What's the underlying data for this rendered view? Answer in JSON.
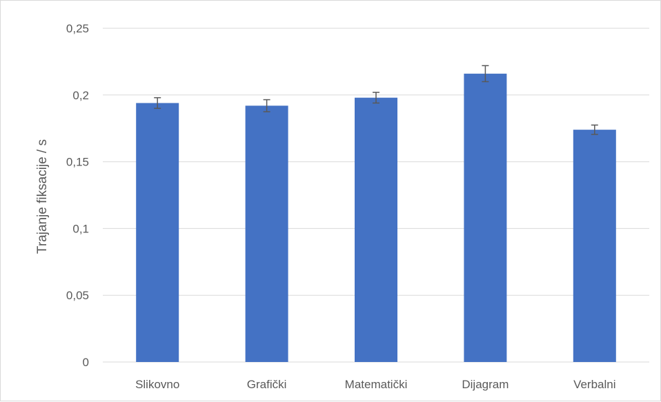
{
  "chart_data": {
    "type": "bar",
    "title": "",
    "xlabel": "",
    "ylabel": "Trajanje fiksacije / s",
    "categories": [
      "Slikovno",
      "Grafički",
      "Matematički",
      "Dijagram",
      "Verbalni"
    ],
    "values": [
      0.194,
      0.192,
      0.198,
      0.216,
      0.174
    ],
    "error": [
      0.004,
      0.0045,
      0.004,
      0.006,
      0.0035
    ],
    "ylim": [
      0,
      0.25
    ],
    "yticks": [
      0,
      0.05,
      0.1,
      0.15,
      0.2,
      0.25
    ],
    "ytick_labels": [
      "0",
      "0,05",
      "0,1",
      "0,15",
      "0,2",
      "0,25"
    ],
    "grid": true,
    "legend": "none",
    "colors": {
      "bar": "#4472C4",
      "error_bar": "#595959",
      "grid": "#d9d9d9",
      "axis": "#d9d9d9"
    }
  }
}
